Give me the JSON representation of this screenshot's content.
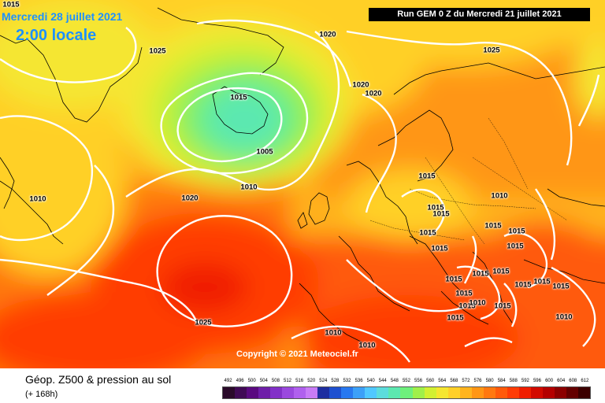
{
  "header": {
    "date": "Mercredi 28 juillet 2021",
    "time": "2:00 locale",
    "run": "Run GEM 0 Z du Mercredi 21 juillet 2021"
  },
  "copyright": "Copyright © 2021 Meteociel.fr",
  "legend": {
    "title": "Géop. Z500 & pression au sol",
    "subtitle": "(+ 168h)",
    "scale_values": [
      "492",
      "496",
      "500",
      "504",
      "508",
      "512",
      "516",
      "520",
      "524",
      "528",
      "532",
      "536",
      "540",
      "544",
      "548",
      "552",
      "556",
      "560",
      "564",
      "568",
      "572",
      "576",
      "580",
      "584",
      "588",
      "592",
      "596",
      "600",
      "604",
      "608",
      "612"
    ],
    "scale_colors": [
      "#2a0a2a",
      "#400a55",
      "#5a0a80",
      "#6e1ea8",
      "#8230c8",
      "#9a48de",
      "#b060ee",
      "#c87cf6",
      "#1e2ea0",
      "#1e50d0",
      "#2878f0",
      "#3ca0f8",
      "#50c8ff",
      "#5cdcdc",
      "#5ce8b0",
      "#6ef07c",
      "#a0f04a",
      "#d2f032",
      "#f5e630",
      "#ffd028",
      "#ffb41e",
      "#ff9614",
      "#ff780f",
      "#ff5a0a",
      "#ff3c05",
      "#f01e00",
      "#d20a00",
      "#b40000",
      "#8c0000",
      "#640000",
      "#3c0000"
    ]
  },
  "isobars": [
    "1015",
    "1025",
    "1020",
    "1025",
    "1020",
    "1020",
    "1015",
    "1005",
    "1010",
    "1010",
    "1015",
    "1020",
    "1010",
    "1015",
    "1015",
    "1015",
    "1015",
    "1015",
    "1015",
    "1015",
    "1015",
    "1010",
    "1015",
    "1015",
    "1015",
    "1015",
    "1015",
    "1015",
    "1015",
    "1015",
    "1015",
    "1025",
    "1010",
    "1010",
    "1010"
  ],
  "colors": {
    "title_blue": "#1e90ff",
    "run_box": "#000000",
    "isobar_line": "#ffffff",
    "coast_line": "#000000"
  }
}
